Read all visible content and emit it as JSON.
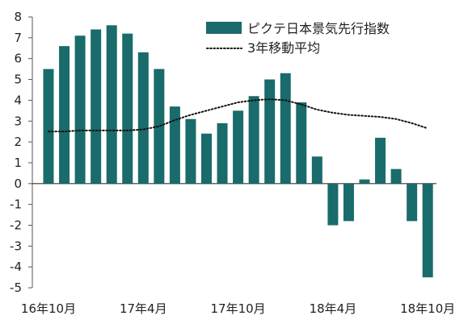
{
  "chart_data": {
    "type": "bar",
    "legend_position": "top-right",
    "grid": false,
    "ylim": [
      -5,
      8
    ],
    "yticks": [
      8,
      7,
      6,
      5,
      4,
      3,
      2,
      1,
      0,
      -1,
      -2,
      -3,
      -4,
      -5
    ],
    "x_tick_labels": [
      "16年10月",
      "17年4月",
      "17年10月",
      "18年4月",
      "18年10月"
    ],
    "x_tick_label_bar_index": [
      0,
      6,
      12,
      18,
      24
    ],
    "series": [
      {
        "name": "ピクテ日本景気先行指数",
        "kind": "bar",
        "color": "#1a6b6b",
        "values": [
          5.5,
          6.6,
          7.1,
          7.4,
          7.6,
          7.2,
          6.3,
          5.5,
          3.7,
          3.1,
          2.4,
          2.9,
          3.5,
          4.2,
          5.0,
          5.3,
          3.9,
          1.3,
          -2.0,
          -1.8,
          0.2,
          2.2,
          0.7,
          -1.8,
          -4.5
        ]
      },
      {
        "name": "3年移動平均",
        "kind": "line",
        "style": "dotted",
        "color": "#111111",
        "values": [
          2.5,
          2.5,
          2.55,
          2.55,
          2.55,
          2.55,
          2.6,
          2.75,
          3.05,
          3.3,
          3.5,
          3.7,
          3.9,
          4.0,
          4.05,
          4.0,
          3.8,
          3.55,
          3.4,
          3.3,
          3.25,
          3.2,
          3.1,
          2.9,
          2.65
        ]
      }
    ]
  }
}
